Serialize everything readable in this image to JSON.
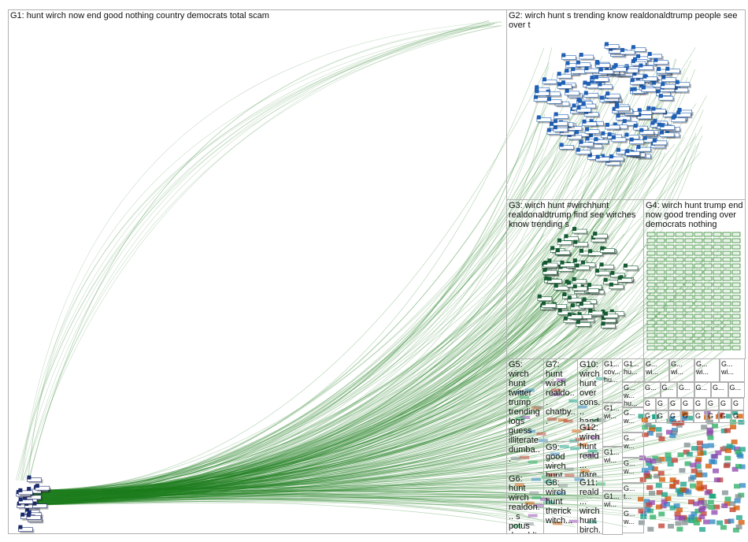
{
  "panels": [
    {
      "label": "G1: hunt wirch now end good nothing country democrats total scam"
    },
    {
      "label": "G2: wirch hunt s trending know realdonaldtrump people see over t"
    },
    {
      "label": "G3: wirch hunt #wirchhunt realdonaldtrump find see wirches know trending s"
    },
    {
      "label": "G4: wirch hunt trump end now good trending over democrats nothing"
    },
    {
      "label": "G5: wirch hunt twitter trump trending logs guess illiterate dumba..."
    },
    {
      "label": "G6: hunt wirch realdon... s potus donaldt..."
    },
    {
      "label": "G7: hunt wirch realdo... chatby..."
    },
    {
      "label": "G9: good wirch hunt trump..."
    },
    {
      "label": "G8: wirch hunt therick witch..."
    },
    {
      "label": "G10: wirch hunt over cons... hand..."
    },
    {
      "label": "G12: wirch hunt reald... dare..."
    },
    {
      "label": "G11: reald... wirch hunt birch..."
    }
  ],
  "small_cells": [
    "G1... cov... hu...",
    "G1... wi...",
    "G1... wi...",
    "G1... wi...",
    "G... w... hu...",
    "G... w...",
    "G... w...",
    "G... w...",
    "G... t...",
    "G... w...",
    "G1... hu...",
    "G... wi...",
    "G... wi...",
    "G... wi...",
    "G... wi...",
    "G...",
    "G...",
    "G...",
    "G...",
    "G...",
    "G...",
    "G",
    "G",
    "G",
    "G",
    "G",
    "G",
    "G",
    "G",
    "G",
    "G",
    "G",
    "G",
    "G",
    "G",
    "G",
    "G"
  ]
}
